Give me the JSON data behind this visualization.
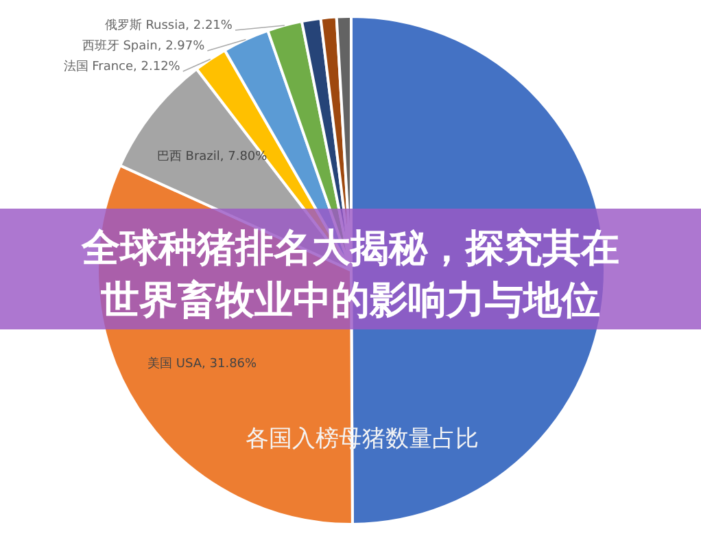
{
  "chart_data": {
    "type": "pie",
    "title": "全球种猪排名大揭秘，探究其在世界畜牧业中的影响力与地位",
    "annotations": [
      "各国入榜母猪数量占比"
    ],
    "categories": [
      null,
      "美国 USA",
      "巴西 Brazil",
      "法国 France",
      "西班牙 Spain",
      "俄罗斯 Russia",
      null,
      null,
      null
    ],
    "values": [
      49.92,
      31.86,
      7.8,
      2.12,
      2.97,
      2.21,
      1.2,
      1.0,
      0.92
    ],
    "value_labels": [
      null,
      "31.86%",
      "7.80%",
      "2.12%",
      "2.97%",
      "2.21%",
      null,
      null,
      null
    ],
    "colors": [
      "#4472c4",
      "#ed7d31",
      "#a5a5a5",
      "#ffc000",
      "#5b9bd5",
      "#70ad47",
      "#264478",
      "#9e480e",
      "#636363"
    ]
  }
}
